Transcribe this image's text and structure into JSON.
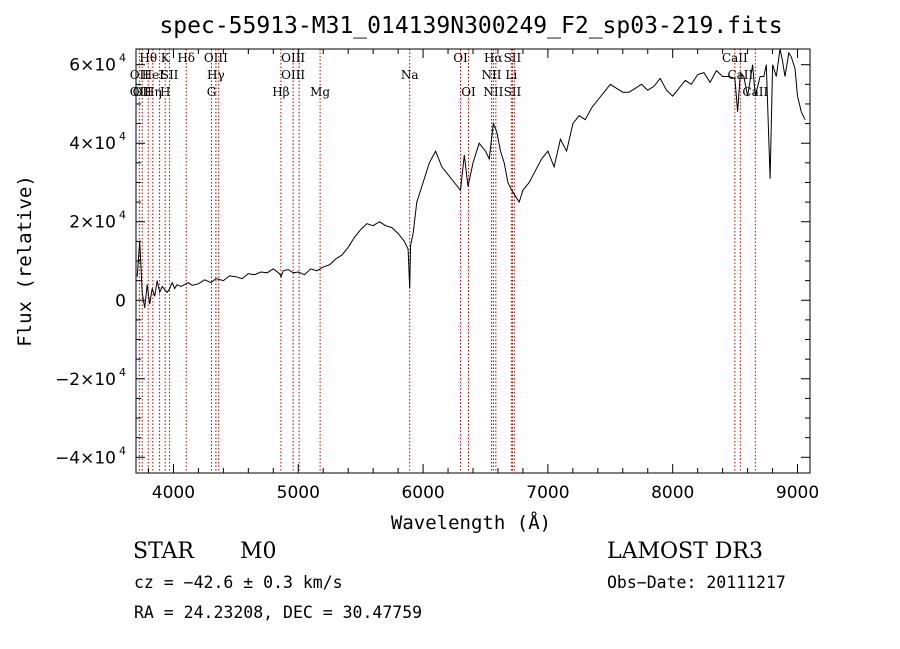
{
  "chart_data": {
    "type": "line",
    "title": "spec-55913-M31_014139N300249_F2_sp03-219.fits",
    "xlabel": "Wavelength (Å)",
    "ylabel": "Flux (relative)",
    "xlim": [
      3700,
      9100
    ],
    "ylim": [
      -44000,
      64000
    ],
    "xticks": [
      4000,
      5000,
      6000,
      7000,
      8000,
      9000
    ],
    "yticks": [
      {
        "value": -40000,
        "mant": "−4×10",
        "exp": "4"
      },
      {
        "value": -20000,
        "mant": "−2×10",
        "exp": "4"
      },
      {
        "value": 0,
        "mant": "0",
        "exp": ""
      },
      {
        "value": 20000,
        "mant": "2×10",
        "exp": "4"
      },
      {
        "value": 40000,
        "mant": "4×10",
        "exp": "4"
      },
      {
        "value": 60000,
        "mant": "6×10",
        "exp": "4"
      }
    ],
    "series": [
      {
        "x": [
          3710,
          3730,
          3750,
          3770,
          3790,
          3810,
          3830,
          3850,
          3870,
          3890,
          3910,
          3935,
          3950,
          3970,
          3990,
          4010,
          4030,
          4060,
          4090,
          4120,
          4150,
          4200,
          4250,
          4300,
          4340,
          4400,
          4450,
          4500,
          4550,
          4600,
          4650,
          4700,
          4750,
          4800,
          4850,
          4861,
          4880,
          4920,
          4960,
          5000,
          5050,
          5100,
          5150,
          5200,
          5250,
          5300,
          5350,
          5400,
          5450,
          5500,
          5550,
          5600,
          5650,
          5700,
          5750,
          5800,
          5850,
          5880,
          5893,
          5900,
          5920,
          5950,
          6000,
          6050,
          6100,
          6150,
          6200,
          6250,
          6300,
          6330,
          6360,
          6400,
          6450,
          6500,
          6530,
          6563,
          6590,
          6620,
          6650,
          6680,
          6710,
          6740,
          6770,
          6800,
          6850,
          6900,
          6950,
          7000,
          7050,
          7100,
          7150,
          7200,
          7250,
          7300,
          7350,
          7400,
          7450,
          7500,
          7550,
          7600,
          7650,
          7700,
          7750,
          7800,
          7850,
          7900,
          7950,
          8000,
          8050,
          8100,
          8150,
          8200,
          8250,
          8300,
          8350,
          8400,
          8450,
          8498,
          8520,
          8542,
          8570,
          8600,
          8640,
          8662,
          8700,
          8730,
          8750,
          8780,
          8800,
          8830,
          8860,
          8880,
          8900,
          8930,
          8950,
          8980,
          9000,
          9030,
          9060
        ],
        "y": [
          6000,
          15000,
          2000,
          -2000,
          4000,
          -1000,
          3000,
          1000,
          5000,
          2000,
          3500,
          2500,
          2000,
          3000,
          4500,
          3000,
          4000,
          3500,
          4000,
          4500,
          3800,
          4200,
          5200,
          4500,
          5500,
          5000,
          6200,
          6000,
          5500,
          6800,
          6500,
          7200,
          7000,
          8000,
          6800,
          6000,
          7500,
          7800,
          7000,
          7200,
          6500,
          8000,
          7500,
          8500,
          9000,
          10500,
          11500,
          13500,
          16000,
          18000,
          19500,
          19000,
          20000,
          19000,
          18500,
          17000,
          15000,
          13000,
          3000,
          14000,
          17000,
          25000,
          30000,
          35000,
          38000,
          34000,
          32000,
          30000,
          28000,
          37000,
          29000,
          35000,
          40000,
          38000,
          36000,
          45000,
          43000,
          38000,
          35000,
          30000,
          28000,
          26500,
          25000,
          28000,
          30000,
          33000,
          36000,
          38000,
          34000,
          41000,
          38000,
          45000,
          47000,
          46000,
          49000,
          51000,
          53000,
          55000,
          54000,
          53000,
          53000,
          54000,
          55000,
          53500,
          54500,
          56500,
          53500,
          52000,
          54000,
          56000,
          55000,
          57500,
          58000,
          55500,
          58500,
          57000,
          57000,
          56500,
          48000,
          58000,
          57000,
          52000,
          60000,
          52000,
          57000,
          57000,
          60000,
          31000,
          60000,
          57000,
          64000,
          61000,
          57000,
          63000,
          62000,
          59000,
          52000,
          48000,
          46000
        ]
      }
    ],
    "lines": [
      {
        "wave": 3727,
        "row1": "",
        "row2": "OII",
        "row3": "OII"
      },
      {
        "wave": 3750,
        "row1": "",
        "row2": "",
        "row3": "OII"
      },
      {
        "wave": 3798,
        "row1": "Hθ",
        "row2": "",
        "row3": ""
      },
      {
        "wave": 3835,
        "row1": "",
        "row2": "HeI",
        "row3": "Hη"
      },
      {
        "wave": 3889,
        "row1": "",
        "row2": "",
        "row3": ""
      },
      {
        "wave": 3934,
        "row1": "K",
        "row2": "",
        "row3": "H"
      },
      {
        "wave": 3969,
        "row1": "",
        "row2": "SII",
        "row3": ""
      },
      {
        "wave": 4102,
        "row1": "Hδ",
        "row2": "",
        "row3": ""
      },
      {
        "wave": 4305,
        "row1": "",
        "row2": "",
        "row3": "G"
      },
      {
        "wave": 4340,
        "row1": "OIII",
        "row2": "Hγ",
        "row3": ""
      },
      {
        "wave": 4363,
        "row1": "",
        "row2": "",
        "row3": ""
      },
      {
        "wave": 4861,
        "row1": "",
        "row2": "",
        "row3": "Hβ"
      },
      {
        "wave": 4959,
        "row1": "OIII",
        "row2": "OIII",
        "row3": ""
      },
      {
        "wave": 5007,
        "row1": "",
        "row2": "",
        "row3": ""
      },
      {
        "wave": 5175,
        "row1": "",
        "row2": "",
        "row3": "Mg"
      },
      {
        "wave": 5893,
        "row1": "",
        "row2": "Na",
        "row3": ""
      },
      {
        "wave": 6300,
        "row1": "OI",
        "row2": "",
        "row3": ""
      },
      {
        "wave": 6364,
        "row1": "",
        "row2": "",
        "row3": "OI"
      },
      {
        "wave": 6548,
        "row1": "",
        "row2": "NII",
        "row3": ""
      },
      {
        "wave": 6563,
        "row1": "Hα",
        "row2": "",
        "row3": "NII"
      },
      {
        "wave": 6583,
        "row1": "",
        "row2": "",
        "row3": ""
      },
      {
        "wave": 6707,
        "row1": "",
        "row2": "Li",
        "row3": ""
      },
      {
        "wave": 6716,
        "row1": "SII",
        "row2": "",
        "row3": "SII"
      },
      {
        "wave": 6731,
        "row1": "",
        "row2": "",
        "row3": ""
      },
      {
        "wave": 8498,
        "row1": "CaII",
        "row2": "",
        "row3": ""
      },
      {
        "wave": 8542,
        "row1": "",
        "row2": "CaII",
        "row3": ""
      },
      {
        "wave": 8662,
        "row1": "",
        "row2": "",
        "row3": "CaII"
      }
    ]
  },
  "info": {
    "class_label": "STAR",
    "subclass_label": "M0",
    "survey_label": "LAMOST DR3",
    "cz_line": "cz = −42.6 ± 0.3 km/s",
    "obsdate_line": "Obs−Date: 20111217",
    "radec_line": "RA =  24.23208, DEC =  30.47759"
  },
  "colors": {
    "spectrum": "#000000",
    "line_markers": "#b00000",
    "axes": "#000000"
  }
}
